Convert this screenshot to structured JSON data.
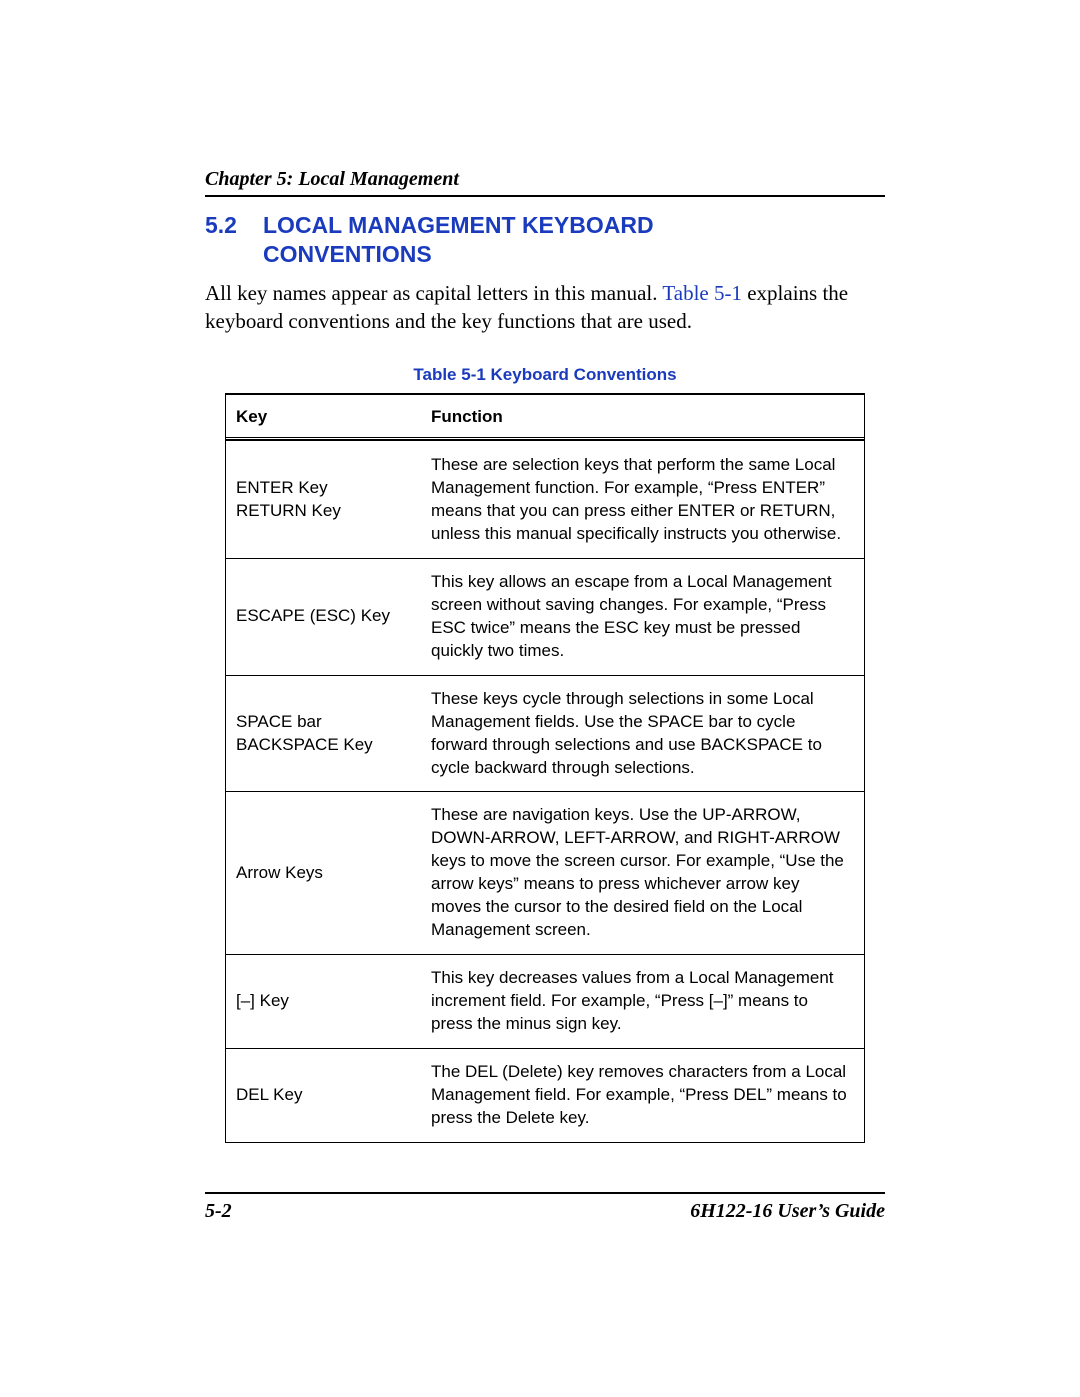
{
  "running_head": "Chapter 5: Local Management",
  "section": {
    "number": "5.2",
    "title": "LOCAL MANAGEMENT KEYBOARD CONVENTIONS"
  },
  "paragraph": {
    "pre": "All key names appear as capital letters in this manual. ",
    "link": "Table 5-1",
    "post": " explains the keyboard conventions and the key functions that are used."
  },
  "table": {
    "caption": "Table 5-1    Keyboard Conventions",
    "columns": [
      "Key",
      "Function"
    ],
    "rows": [
      {
        "key": "ENTER Key\nRETURN Key",
        "func": "These are selection keys that perform the same Local Management function. For example, “Press ENTER” means that you can press either ENTER or RETURN, unless this manual specifically instructs you otherwise."
      },
      {
        "key": "ESCAPE (ESC) Key",
        "func": "This key allows an escape from a Local Management screen without saving changes. For example, “Press ESC twice” means the ESC key must be pressed quickly two times."
      },
      {
        "key": "SPACE bar\nBACKSPACE Key",
        "func": "These keys cycle through selections in some Local Management fields. Use the SPACE bar to cycle forward through selections and use BACKSPACE to cycle backward through selections."
      },
      {
        "key": "Arrow Keys",
        "func": "These are navigation keys. Use the UP-ARROW, DOWN-ARROW, LEFT-ARROW, and RIGHT-ARROW keys to move the screen cursor. For example, “Use the arrow keys” means to press whichever arrow key moves the cursor to the desired field on the Local Management screen."
      },
      {
        "key": "[–] Key",
        "func": "This key decreases values from a Local Management increment field. For example, “Press [–]” means to press the minus sign key."
      },
      {
        "key": "DEL Key",
        "func": "The DEL (Delete) key removes characters from a Local Management field. For example, “Press DEL” means to press the Delete key."
      }
    ]
  },
  "footer": {
    "page": "5-2",
    "doc": "6H122-16 User’s Guide"
  },
  "colors": {
    "link_blue": "#1a3bbd",
    "text_black": "#000000",
    "background": "#ffffff"
  }
}
